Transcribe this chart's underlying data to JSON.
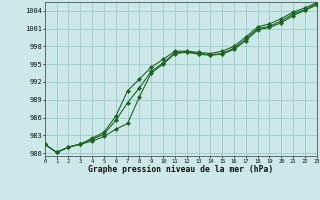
{
  "title": "Graphe pression niveau de la mer (hPa)",
  "background_color": "#cce8e8",
  "grid_color": "#99cccc",
  "line_color": "#1a6620",
  "marker_color": "#1a6620",
  "xlim": [
    0,
    23
  ],
  "ylim": [
    979.5,
    1005.5
  ],
  "yticks": [
    980,
    983,
    986,
    989,
    992,
    995,
    998,
    1001,
    1004
  ],
  "xticks": [
    0,
    1,
    2,
    3,
    4,
    5,
    6,
    7,
    8,
    9,
    10,
    11,
    12,
    13,
    14,
    15,
    16,
    17,
    18,
    19,
    20,
    21,
    22,
    23
  ],
  "series1_x": [
    0,
    1,
    2,
    3,
    4,
    5,
    6,
    7,
    8,
    9,
    10,
    11,
    12,
    13,
    14,
    15,
    16,
    17,
    18,
    19,
    20,
    21,
    22,
    23
  ],
  "series1_y": [
    981.5,
    980.1,
    981.0,
    981.5,
    982.0,
    982.8,
    984.0,
    985.0,
    989.5,
    993.5,
    995.0,
    996.8,
    997.0,
    996.7,
    996.5,
    996.7,
    997.5,
    999.0,
    1000.8,
    1001.2,
    1002.0,
    1003.2,
    1004.1,
    1005.0
  ],
  "series2_x": [
    0,
    1,
    2,
    3,
    4,
    5,
    6,
    7,
    8,
    9,
    10,
    11,
    12,
    13,
    14,
    15,
    16,
    17,
    18,
    19,
    20,
    21,
    22,
    23
  ],
  "series2_y": [
    981.5,
    980.1,
    981.0,
    981.5,
    982.3,
    983.2,
    985.5,
    988.5,
    991.0,
    993.8,
    995.2,
    996.9,
    997.1,
    996.8,
    996.6,
    996.8,
    997.7,
    999.2,
    1001.0,
    1001.4,
    1002.3,
    1003.5,
    1004.2,
    1005.2
  ],
  "series3_x": [
    0,
    1,
    2,
    3,
    4,
    5,
    6,
    7,
    8,
    9,
    10,
    11,
    12,
    13,
    14,
    15,
    16,
    17,
    18,
    19,
    20,
    21,
    22,
    23
  ],
  "series3_y": [
    981.5,
    980.1,
    981.0,
    981.5,
    982.5,
    983.5,
    986.2,
    990.5,
    992.5,
    994.5,
    995.8,
    997.2,
    997.2,
    997.0,
    996.8,
    997.2,
    998.0,
    999.6,
    1001.3,
    1001.8,
    1002.7,
    1003.8,
    1004.5,
    1005.4
  ]
}
